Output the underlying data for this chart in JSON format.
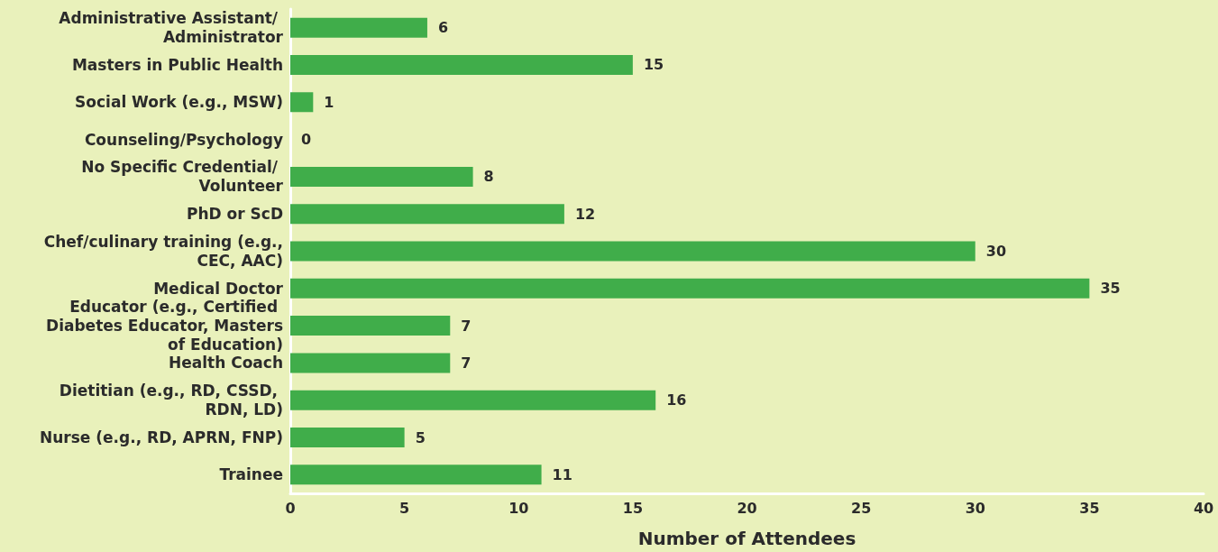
{
  "chart_data": {
    "type": "bar",
    "orientation": "horizontal",
    "xlabel": "Number of Attendees",
    "categories": [
      "Administrative Assistant/ Administrator",
      "Masters in Public Health",
      "Social Work (e.g., MSW)",
      "Counseling/Psychology",
      "No Specific Credential/ Volunteer",
      "PhD or ScD",
      "Chef/culinary training (e.g., CEC, AAC)",
      "Medical Doctor",
      "Educator (e.g., Certified Diabetes Educator, Masters of Education)",
      "Health Coach",
      "Dietitian (e.g., RD, CSSD, RDN, LD)",
      "Nurse (e.g., RD, APRN, FNP)",
      "Trainee"
    ],
    "values": [
      6,
      15,
      1,
      0,
      8,
      12,
      30,
      35,
      7,
      7,
      16,
      5,
      11
    ],
    "color": "#40ad4a",
    "xlim": [
      0,
      40
    ],
    "xticks": [
      0,
      5,
      10,
      15,
      20,
      25,
      30,
      35,
      40
    ],
    "grid": false,
    "data_labels": true
  }
}
